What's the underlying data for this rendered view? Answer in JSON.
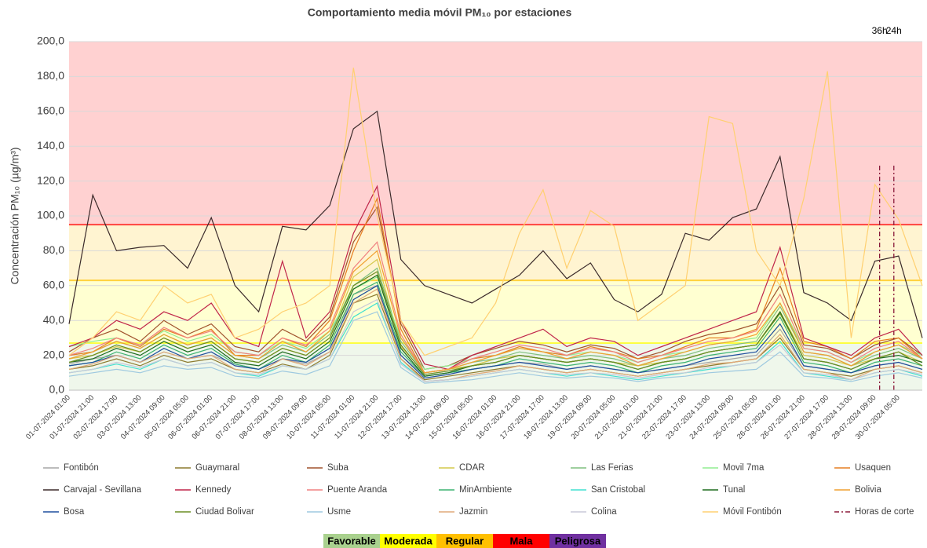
{
  "chart_data": {
    "type": "line",
    "title": "Comportamiento media móvil PM₁₀ por estaciones",
    "y_label": "Concentración PM₁₀ (µg/m³)",
    "ylim": [
      0,
      200
    ],
    "yticks": [
      {
        "value": 0,
        "label": "0,0"
      },
      {
        "value": 20,
        "label": "20,0"
      },
      {
        "value": 40,
        "label": "40,0"
      },
      {
        "value": 60,
        "label": "60,0"
      },
      {
        "value": 80,
        "label": "80,0"
      },
      {
        "value": 100,
        "label": "100,0"
      },
      {
        "value": 120,
        "label": "120,0"
      },
      {
        "value": 140,
        "label": "140,0"
      },
      {
        "value": 160,
        "label": "160,0"
      },
      {
        "value": 180,
        "label": "180,0"
      },
      {
        "value": 200,
        "label": "200,0"
      }
    ],
    "grid": true,
    "categories": [
      "01-07-2024 01:00",
      "01-07-2024 21:00",
      "02-07-2024 17:00",
      "03-07-2024 13:00",
      "04-07-2024 09:00",
      "05-07-2024 05:00",
      "06-07-2024 01:00",
      "06-07-2024 21:00",
      "07-07-2024 17:00",
      "08-07-2024 13:00",
      "09-07-2024 09:00",
      "10-07-2024 05:00",
      "11-07-2024 01:00",
      "11-07-2024 21:00",
      "12-07-2024 17:00",
      "13-07-2024 13:00",
      "14-07-2024 09:00",
      "15-07-2024 05:00",
      "16-07-2024 01:00",
      "16-07-2024 21:00",
      "17-07-2024 17:00",
      "18-07-2024 13:00",
      "19-07-2024 09:00",
      "20-07-2024 05:00",
      "21-07-2024 01:00",
      "21-07-2024 21:00",
      "22-07-2024 17:00",
      "23-07-2024 13:00",
      "24-07-2024 09:00",
      "25-07-2024 05:00",
      "26-07-2024 01:00",
      "26-07-2024 21:00",
      "27-07-2024 17:00",
      "28-07-2024 13:00",
      "29-07-2024 09:00",
      "30-07-2024 05:00",
      null
    ],
    "bands": [
      {
        "name": "Favorable",
        "from": 0,
        "to": 27,
        "color": "#a9d18e"
      },
      {
        "name": "Moderada",
        "from": 27,
        "to": 63,
        "color": "#ffff00"
      },
      {
        "name": "Regular",
        "from": 63,
        "to": 95,
        "color": "#ffc000"
      },
      {
        "name": "Mala",
        "from": 95,
        "to": 200,
        "color": "#ff0000"
      },
      {
        "name": "Peligrosa",
        "color": "#7030a0"
      }
    ],
    "series": [
      {
        "name": "Fontibón",
        "color": "#a6a6a6",
        "values": [
          15,
          18,
          20,
          16,
          22,
          18,
          20,
          15,
          12,
          18,
          15,
          22,
          55,
          60,
          20,
          8,
          10,
          12,
          14,
          16,
          15,
          12,
          14,
          12,
          10,
          12,
          14,
          16,
          18,
          20,
          35,
          14,
          12,
          10,
          14,
          16,
          12
        ]
      },
      {
        "name": "Guaymaral",
        "color": "#8c7a2e",
        "values": [
          12,
          14,
          18,
          14,
          20,
          16,
          18,
          12,
          10,
          15,
          12,
          20,
          50,
          55,
          18,
          6,
          8,
          10,
          12,
          14,
          12,
          10,
          12,
          10,
          8,
          10,
          12,
          14,
          16,
          18,
          30,
          12,
          10,
          8,
          12,
          14,
          10
        ]
      },
      {
        "name": "Suba",
        "color": "#a0522d",
        "values": [
          22,
          30,
          35,
          28,
          40,
          32,
          38,
          25,
          22,
          35,
          28,
          42,
          85,
          105,
          38,
          12,
          14,
          20,
          24,
          28,
          26,
          22,
          26,
          24,
          18,
          22,
          28,
          32,
          34,
          38,
          60,
          26,
          24,
          18,
          26,
          30,
          20
        ]
      },
      {
        "name": "CDAR",
        "color": "#d4c84a",
        "values": [
          18,
          20,
          25,
          22,
          30,
          24,
          28,
          18,
          16,
          24,
          20,
          30,
          65,
          75,
          25,
          10,
          12,
          14,
          18,
          20,
          18,
          16,
          18,
          16,
          14,
          16,
          18,
          22,
          24,
          26,
          45,
          20,
          18,
          14,
          18,
          22,
          16
        ]
      },
      {
        "name": "Las Ferias",
        "color": "#7fbf7f",
        "values": [
          20,
          22,
          28,
          24,
          32,
          26,
          30,
          20,
          18,
          26,
          22,
          32,
          60,
          70,
          28,
          10,
          12,
          16,
          18,
          22,
          20,
          18,
          20,
          18,
          14,
          18,
          20,
          24,
          26,
          28,
          48,
          22,
          20,
          14,
          20,
          24,
          18
        ]
      },
      {
        "name": "Movil 7ma",
        "color": "#90ee90",
        "values": [
          25,
          28,
          30,
          26,
          34,
          28,
          32,
          22,
          20,
          28,
          24,
          34,
          58,
          65,
          30,
          12,
          14,
          18,
          20,
          24,
          22,
          20,
          22,
          20,
          16,
          20,
          22,
          26,
          28,
          30,
          50,
          24,
          22,
          16,
          22,
          26,
          20
        ]
      },
      {
        "name": "Usaquen",
        "color": "#e67e22",
        "values": [
          20,
          22,
          30,
          25,
          35,
          30,
          35,
          20,
          20,
          30,
          25,
          40,
          80,
          110,
          35,
          10,
          12,
          18,
          20,
          25,
          22,
          20,
          25,
          22,
          18,
          20,
          25,
          30,
          30,
          35,
          70,
          28,
          25,
          18,
          28,
          30,
          18
        ]
      },
      {
        "name": "Carvajal - Sevillana",
        "color": "#3b2a2a",
        "values": [
          38,
          112,
          80,
          82,
          83,
          70,
          99,
          60,
          45,
          94,
          92,
          106,
          150,
          160,
          75,
          60,
          55,
          50,
          58,
          66,
          80,
          64,
          73,
          52,
          45,
          55,
          90,
          86,
          99,
          104,
          134,
          56,
          50,
          40,
          74,
          77,
          30
        ]
      },
      {
        "name": "Kennedy",
        "color": "#c0254a",
        "values": [
          25,
          30,
          40,
          35,
          45,
          40,
          50,
          30,
          25,
          74,
          30,
          45,
          90,
          117,
          40,
          15,
          12,
          20,
          25,
          30,
          35,
          25,
          30,
          28,
          20,
          25,
          30,
          35,
          40,
          45,
          82,
          30,
          25,
          20,
          30,
          35,
          20
        ]
      },
      {
        "name": "Puente Aranda",
        "color": "#f08080",
        "values": [
          20,
          24,
          30,
          26,
          36,
          30,
          34,
          22,
          20,
          30,
          26,
          36,
          70,
          85,
          32,
          10,
          12,
          18,
          22,
          26,
          24,
          20,
          24,
          22,
          16,
          20,
          24,
          28,
          30,
          34,
          55,
          24,
          22,
          16,
          24,
          28,
          18
        ]
      },
      {
        "name": "MinAmbiente",
        "color": "#3cb371",
        "values": [
          14,
          16,
          22,
          18,
          26,
          20,
          24,
          15,
          12,
          20,
          16,
          26,
          55,
          62,
          22,
          8,
          10,
          12,
          14,
          18,
          16,
          14,
          16,
          14,
          10,
          14,
          16,
          20,
          22,
          24,
          42,
          16,
          14,
          10,
          16,
          18,
          14
        ]
      },
      {
        "name": "San Cristobal",
        "color": "#40e0d0",
        "values": [
          10,
          12,
          15,
          12,
          18,
          14,
          16,
          10,
          8,
          14,
          12,
          18,
          42,
          50,
          16,
          5,
          6,
          8,
          10,
          12,
          10,
          8,
          10,
          8,
          6,
          8,
          10,
          12,
          14,
          16,
          28,
          10,
          8,
          6,
          10,
          12,
          8
        ]
      },
      {
        "name": "Tunal",
        "color": "#1e6b1e",
        "values": [
          16,
          18,
          24,
          20,
          28,
          22,
          26,
          16,
          14,
          22,
          18,
          28,
          58,
          66,
          24,
          8,
          10,
          14,
          16,
          20,
          18,
          16,
          18,
          16,
          12,
          16,
          18,
          22,
          24,
          26,
          45,
          18,
          16,
          12,
          18,
          20,
          16
        ]
      },
      {
        "name": "Bolivia",
        "color": "#f0a030",
        "values": [
          18,
          22,
          28,
          24,
          32,
          26,
          30,
          20,
          18,
          28,
          22,
          34,
          68,
          80,
          30,
          10,
          12,
          16,
          20,
          24,
          22,
          18,
          22,
          20,
          14,
          18,
          22,
          26,
          28,
          32,
          50,
          22,
          20,
          14,
          22,
          26,
          18
        ]
      },
      {
        "name": "Bosa",
        "color": "#1f4e9e",
        "values": [
          14,
          16,
          20,
          16,
          24,
          18,
          22,
          14,
          12,
          18,
          16,
          24,
          52,
          60,
          20,
          7,
          9,
          12,
          14,
          16,
          14,
          12,
          14,
          12,
          10,
          12,
          14,
          18,
          20,
          22,
          38,
          14,
          12,
          10,
          14,
          16,
          12
        ]
      },
      {
        "name": "Ciudad Bolivar",
        "color": "#6b8e23",
        "values": [
          16,
          20,
          26,
          22,
          30,
          24,
          28,
          18,
          16,
          24,
          20,
          30,
          60,
          68,
          26,
          9,
          11,
          14,
          16,
          20,
          18,
          16,
          18,
          16,
          12,
          16,
          18,
          22,
          24,
          26,
          44,
          18,
          16,
          12,
          18,
          22,
          14
        ]
      },
      {
        "name": "Usme",
        "color": "#9ec9e0",
        "values": [
          8,
          10,
          12,
          10,
          14,
          12,
          13,
          8,
          7,
          11,
          9,
          14,
          40,
          45,
          13,
          4,
          5,
          6,
          8,
          10,
          8,
          7,
          8,
          7,
          5,
          7,
          8,
          10,
          11,
          12,
          22,
          8,
          7,
          5,
          8,
          10,
          7
        ]
      },
      {
        "name": "Jazmin",
        "color": "#e0a878",
        "values": [
          12,
          15,
          20,
          16,
          22,
          18,
          20,
          12,
          10,
          18,
          14,
          22,
          50,
          58,
          18,
          5,
          6,
          9,
          11,
          14,
          12,
          10,
          12,
          10,
          8,
          10,
          12,
          15,
          16,
          18,
          32,
          12,
          10,
          6,
          12,
          14,
          10
        ]
      },
      {
        "name": "Colina",
        "color": "#c8c8d8",
        "values": [
          10,
          12,
          16,
          13,
          18,
          14,
          16,
          10,
          9,
          14,
          12,
          18,
          45,
          52,
          15,
          5,
          6,
          8,
          10,
          12,
          10,
          9,
          10,
          9,
          7,
          9,
          10,
          13,
          14,
          16,
          26,
          10,
          9,
          6,
          10,
          12,
          9
        ]
      },
      {
        "name": "Móvil Fontibón",
        "color": "#ffd070",
        "values": [
          20,
          30,
          45,
          40,
          60,
          50,
          55,
          30,
          35,
          45,
          50,
          60,
          185,
          100,
          40,
          20,
          25,
          30,
          50,
          90,
          115,
          70,
          103,
          94,
          40,
          50,
          60,
          157,
          153,
          80,
          60,
          110,
          183,
          30,
          118,
          98,
          60
        ]
      }
    ],
    "cut_lines": {
      "name": "Horas de corte",
      "color": "#8b1a3a",
      "top": 130,
      "hours": [
        {
          "value": 36,
          "label": "36h"
        },
        {
          "value": 24,
          "label": "24h"
        }
      ]
    }
  }
}
